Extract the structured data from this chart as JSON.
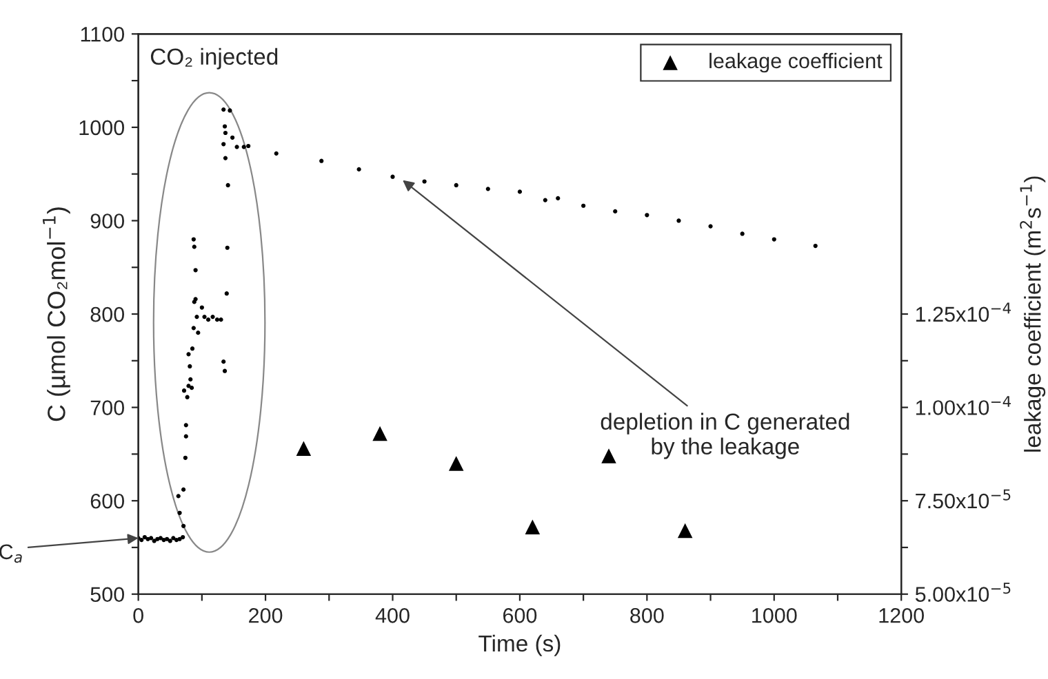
{
  "chart_data": {
    "type": "scatter",
    "xlabel": "Time (s)",
    "ylabel": "C (µmol CO₂mol$^{−1}$)",
    "y2label": "leakage coefficient (m$^{2}$s$^{−1}$)",
    "xlim": [
      0,
      1200
    ],
    "xticks": [
      0,
      {
        "value": 100,
        "label": null
      },
      200,
      {
        "value": 300,
        "label": null
      },
      400,
      {
        "value": 500,
        "label": null
      },
      600,
      {
        "value": 700,
        "label": null
      },
      800,
      {
        "value": 900,
        "label": null
      },
      1000,
      {
        "value": 1100,
        "label": null
      },
      1200
    ],
    "ylim": [
      500,
      1100
    ],
    "yticks": [
      500,
      {
        "value": 550,
        "label": null
      },
      600,
      {
        "value": 650,
        "label": null
      },
      700,
      {
        "value": 750,
        "label": null
      },
      800,
      {
        "value": 850,
        "label": null
      },
      900,
      {
        "value": 950,
        "label": null
      },
      1000,
      {
        "value": 1050,
        "label": null
      },
      1100
    ],
    "y2lim": [
      5e-05,
      0.0002
    ],
    "y2ticks": [
      {
        "value": 5e-05,
        "label": "5.00x10$^{−5}$"
      },
      {
        "value": 6.25e-05,
        "label": null
      },
      {
        "value": 7.5e-05,
        "label": "7.50x10$^{−5}$"
      },
      {
        "value": 8.75e-05,
        "label": null
      },
      {
        "value": 0.0001,
        "label": "1.00x10$^{−4}$"
      },
      {
        "value": 0.0001125,
        "label": null
      },
      {
        "value": 0.000125,
        "label": "1.25x10$^{−4}$"
      }
    ],
    "grid": false,
    "legend": "top right",
    "series": [
      {
        "color": "#000000",
        "marker": "circle",
        "x": [
          0,
          5,
          10,
          15,
          20,
          25,
          30,
          35,
          40,
          45,
          50,
          55,
          60,
          65,
          70,
          71,
          65,
          63,
          71,
          74,
          75,
          75,
          77,
          72,
          79,
          84,
          82,
          81,
          79,
          85,
          87,
          94,
          92,
          88,
          90,
          100,
          104,
          110,
          117,
          124,
          130,
          90,
          88,
          87,
          134,
          136,
          139,
          140,
          141,
          134,
          144,
          136,
          137,
          134,
          137,
          148,
          155,
          166,
          173,
          217,
          288,
          347,
          400,
          450,
          500,
          550,
          600,
          640,
          660,
          700,
          750,
          800,
          850,
          900,
          950,
          1000,
          1065
        ],
        "values": [
          560,
          558,
          561,
          559,
          560,
          557,
          559,
          560,
          558,
          559,
          557,
          560,
          558,
          559,
          561,
          573,
          587,
          605,
          612,
          646,
          669,
          681,
          711,
          718,
          723,
          721,
          730,
          744,
          757,
          763,
          785,
          780,
          797,
          813,
          816,
          807,
          797,
          794,
          797,
          794,
          794,
          847,
          872,
          880,
          749,
          739,
          822,
          871,
          938,
          1019,
          1018,
          1001,
          994,
          982,
          967,
          989,
          979,
          979,
          980,
          972,
          964,
          955,
          947,
          942,
          938,
          934,
          931,
          922,
          924,
          916,
          910,
          906,
          900,
          894,
          886,
          880,
          873
        ]
      },
      {
        "name": "leakage coefficient",
        "color": "#000000",
        "marker": "triangle",
        "axis": "y2",
        "x": [
          260,
          380,
          500,
          620,
          740,
          860
        ],
        "values": [
          8.9e-05,
          9.3e-05,
          8.5e-05,
          6.8e-05,
          8.7e-05,
          6.7e-05
        ]
      }
    ],
    "annotations": [
      "CO₂ injected",
      {
        "text": "depletion in C generated\nby the leakage",
        "x": 411,
        "y": 946
      },
      {
        "text": "C$_{a}$",
        "x": 0,
        "y": 560
      }
    ]
  }
}
